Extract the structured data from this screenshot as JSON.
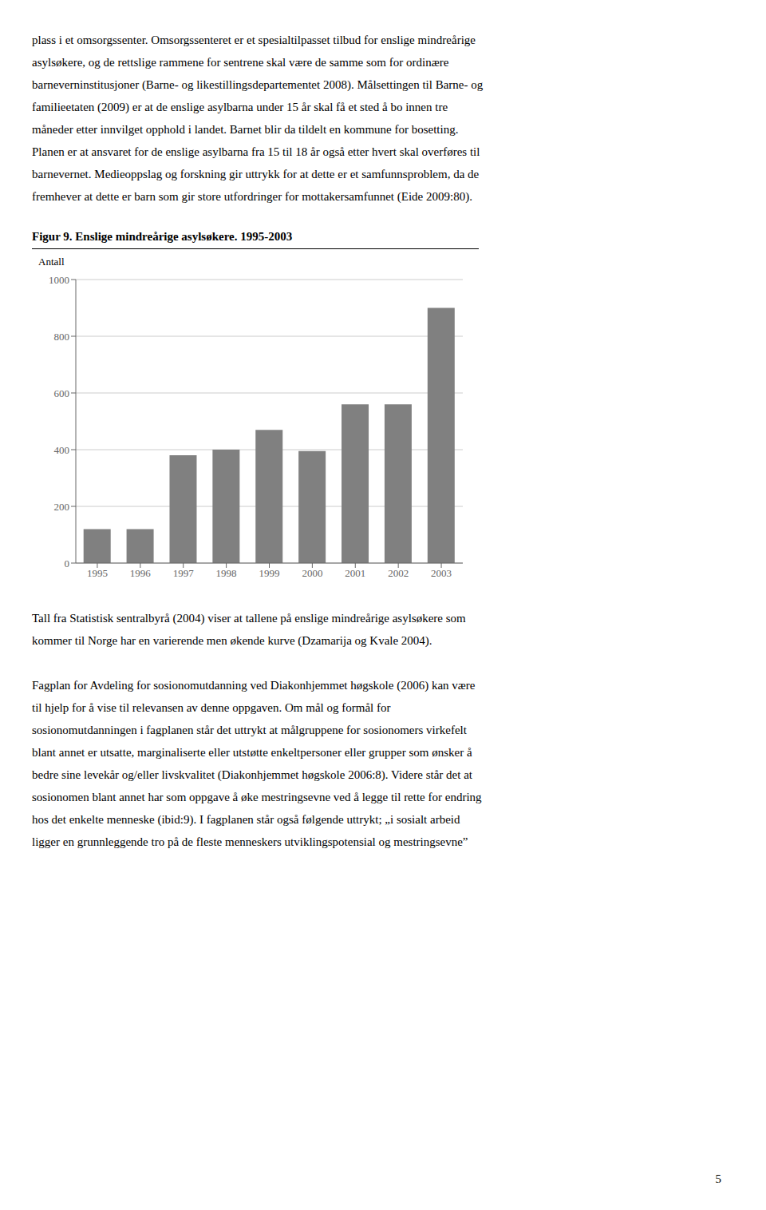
{
  "chart_data": {
    "type": "bar",
    "title": "Figur 9. Enslige mindreårige asylsøkere. 1995-2003",
    "ylabel": "Antall",
    "categories": [
      "1995",
      "1996",
      "1997",
      "1998",
      "1999",
      "2000",
      "2001",
      "2002",
      "2003"
    ],
    "values": [
      120,
      120,
      380,
      400,
      470,
      395,
      560,
      560,
      900
    ],
    "color": "#808080",
    "ylim": [
      0,
      1000
    ],
    "yticks": [
      0,
      200,
      400,
      600,
      800,
      1000
    ],
    "grid": true,
    "annotations": [
      [
        "plass i et omsorgssenter. Omsorgssenteret er et spesialtilpasset tilbud for enslige mindreårige",
        "asylsøkere, og de rettslige rammene for sentrene skal være de samme som for ordinære",
        "barneverninstitusjoner (Barne- og likestillingsdepartementet 2008). Målsettingen til Barne- og",
        "familieetaten (2009) er at de enslige asylbarna under 15 år skal få et sted å bo innen tre",
        "måneder etter innvilget opphold i landet. Barnet blir da tildelt en kommune for bosetting.",
        "Planen er at ansvaret for de enslige asylbarna fra 15 til 18 år også etter hvert skal overføres til",
        "barnevernet. Medieoppslag og forskning gir uttrykk for at dette er et samfunnsproblem, da de",
        "fremhever at dette er barn som gir store utfordringer for mottakersamfunnet (Eide 2009:80)."
      ],
      [
        "Tall fra Statistisk sentralbyrå (2004) viser at tallene på enslige mindreårige asylsøkere som",
        "kommer til Norge har en varierende men økende kurve (Dzamarija og Kvale 2004)."
      ],
      [
        "Fagplan for Avdeling for sosionomutdanning ved Diakonhjemmet høgskole (2006) kan være",
        "til hjelp for å vise til relevansen av denne oppgaven. Om mål og formål for",
        "sosionomutdanningen i fagplanen står det uttrykt at målgruppene for sosionomers virkefelt",
        "blant annet er utsatte, marginaliserte eller utstøtte enkeltpersoner eller grupper som ønsker å",
        "bedre sine levekår og/eller livskvalitet (Diakonhjemmet høgskole 2006:8). Videre står det at",
        "sosionomen blant annet har som oppgave å øke mestringsevne ved å legge til rette for endring",
        "hos det enkelte menneske (ibid:9). I fagplanen står også følgende uttrykt; „i sosialt arbeid",
        "ligger en grunnleggende tro på de fleste menneskers utviklingspotensial og mestringsevne”"
      ],
      [
        "5"
      ]
    ]
  }
}
